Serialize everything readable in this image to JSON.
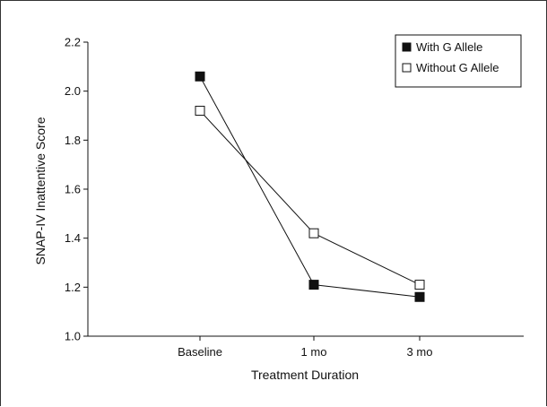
{
  "chart_data": {
    "type": "line",
    "categories": [
      "Baseline",
      "1 mo",
      "3 mo"
    ],
    "series": [
      {
        "name": "With G Allele",
        "values": [
          2.06,
          1.21,
          1.16
        ],
        "marker": "filled-square",
        "color": "#111111"
      },
      {
        "name": "Without G Allele",
        "values": [
          1.92,
          1.42,
          1.21
        ],
        "marker": "open-square",
        "color": "#111111"
      }
    ],
    "title": "",
    "xlabel": "Treatment Duration",
    "ylabel": "SNAP-IV Inattentive Score",
    "ylim": [
      1.0,
      2.2
    ],
    "yticks": [
      "1.0",
      "1.2",
      "1.4",
      "1.6",
      "1.8",
      "2.0",
      "2.2"
    ],
    "grid": false,
    "legend_position": "top-right"
  }
}
